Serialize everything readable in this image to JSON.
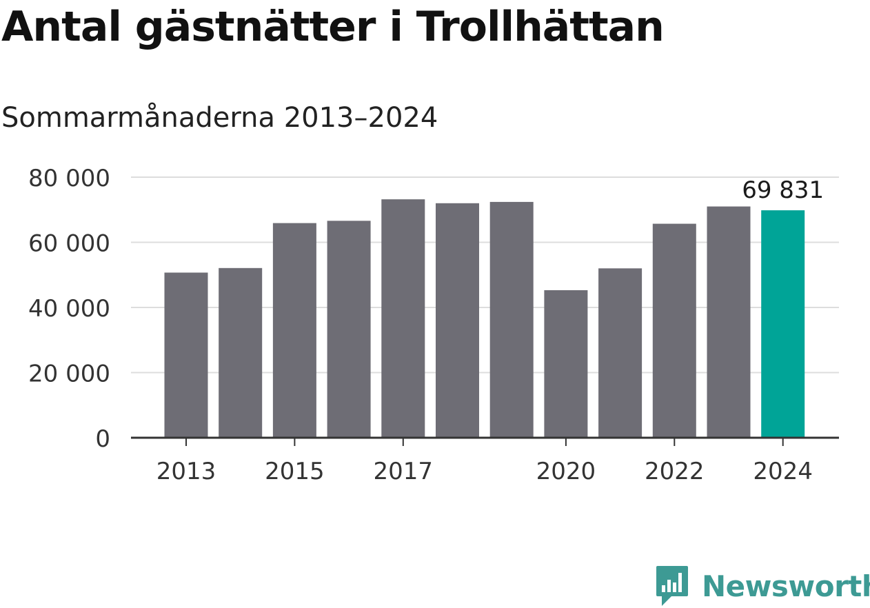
{
  "title": "Antal gästnätter i Trollhättan",
  "subtitle": "Sommarmånaderna 2013–2024",
  "brand": {
    "name": "Newsworthy",
    "color": "#3d9a94",
    "icon": "newsworthy-logo-icon"
  },
  "chart_data": {
    "type": "bar",
    "title": "Antal gästnätter i Trollhättan",
    "subtitle": "Sommarmånaderna 2013–2024",
    "categories": [
      "2013",
      "2014",
      "2015",
      "2016",
      "2017",
      "2018",
      "2019",
      "2020",
      "2021",
      "2022",
      "2023",
      "2024"
    ],
    "values": [
      50700,
      52100,
      65900,
      66600,
      73200,
      72000,
      72400,
      45300,
      52000,
      65700,
      71000,
      69831
    ],
    "x_tick_labels": [
      "2013",
      "2015",
      "2017",
      "2020",
      "2022",
      "2024"
    ],
    "y_ticks": [
      0,
      20000,
      40000,
      60000,
      80000
    ],
    "y_tick_labels": [
      "0",
      "20 000",
      "40 000",
      "60 000",
      "80 000"
    ],
    "ylim": [
      0,
      80000
    ],
    "xlabel": "",
    "ylabel": "",
    "grid": true,
    "highlight": {
      "category": "2024",
      "label": "69 831"
    },
    "colors": {
      "bar": "#6e6d75",
      "highlight": "#00a497",
      "grid": "#dddddd",
      "axis": "#333333"
    }
  }
}
